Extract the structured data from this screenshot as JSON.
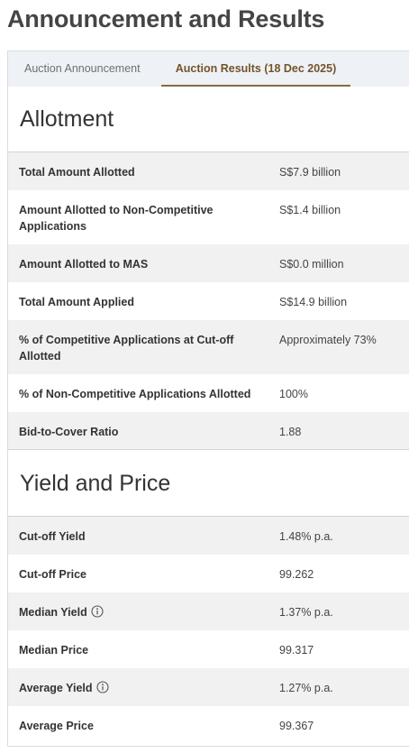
{
  "page": {
    "title": "Announcement and Results"
  },
  "tabs": [
    {
      "label": "Auction Announcement",
      "active": false
    },
    {
      "label": "Auction Results (18 Dec 2025)",
      "active": true
    }
  ],
  "allotment": {
    "title": "Allotment",
    "rows": [
      {
        "label": "Total Amount Allotted",
        "value": "S$7.9 billion"
      },
      {
        "label": "Amount Allotted to Non-Competitive Applications",
        "value": "S$1.4 billion"
      },
      {
        "label": "Amount Allotted to MAS",
        "value": "S$0.0 million"
      },
      {
        "label": "Total Amount Applied",
        "value": "S$14.9 billion"
      },
      {
        "label": "% of Competitive Applications at Cut-off Allotted",
        "value": "Approximately 73%"
      },
      {
        "label": "% of Non-Competitive Applications Allotted",
        "value": "100%"
      },
      {
        "label": "Bid-to-Cover Ratio",
        "value": "1.88"
      }
    ]
  },
  "yield_price": {
    "title": "Yield and Price",
    "rows": [
      {
        "label": "Cut-off Yield",
        "value": "1.48% p.a.",
        "info_icon": false
      },
      {
        "label": "Cut-off Price",
        "value": "99.262",
        "info_icon": false
      },
      {
        "label": "Median Yield",
        "value": "1.37% p.a.",
        "info_icon": true
      },
      {
        "label": "Median Price",
        "value": "99.317",
        "info_icon": false
      },
      {
        "label": "Average Yield",
        "value": "1.27% p.a.",
        "info_icon": true
      },
      {
        "label": "Average Price",
        "value": "99.367",
        "info_icon": false
      }
    ]
  },
  "colors": {
    "accent": "#8a6a3e",
    "active_tab_text": "#74532a",
    "tab_bar_bg": "#eef2f6",
    "shaded_row": "#f1f1f1"
  },
  "icons": {
    "info": "info-circle-icon"
  }
}
